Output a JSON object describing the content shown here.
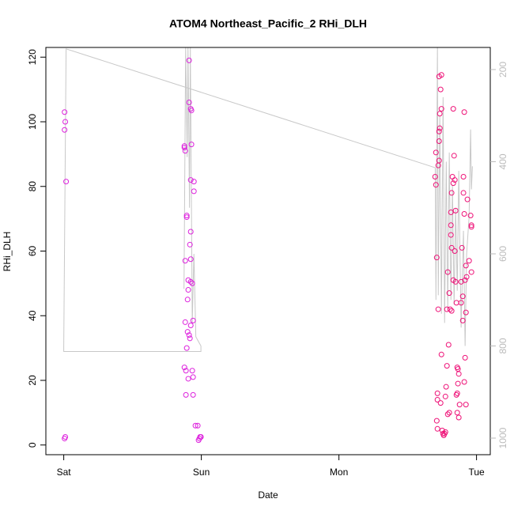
{
  "chart_data": {
    "type": "scatter",
    "title": "ATOM4 Northeast_Pacific_2 RHi_DLH",
    "xlabel": "Date",
    "ylabel": "RHi_DLH",
    "xlim": [
      -0.13,
      3.1
    ],
    "xticks": [
      {
        "value": 0,
        "label": "Sat"
      },
      {
        "value": 1,
        "label": "Sun"
      },
      {
        "value": 2,
        "label": "Mon"
      },
      {
        "value": 3,
        "label": "Tue"
      }
    ],
    "ylim": [
      -3,
      123
    ],
    "yticks": [
      0,
      20,
      40,
      60,
      80,
      100,
      120
    ],
    "y2lim": [
      1036,
      152
    ],
    "y2ticks": [
      200,
      400,
      600,
      800,
      1000
    ],
    "y2color": "#bbbbbb",
    "series": [
      {
        "type": "scatter",
        "color": "#dd22dd",
        "x": [
          0.006,
          0.011,
          0.006,
          0.017,
          0.006,
          0.011,
          0.877,
          0.883,
          0.877,
          0.911,
          0.911,
          0.923,
          0.928,
          0.928,
          0.923,
          0.946,
          0.946,
          0.894,
          0.894,
          0.923,
          0.917,
          0.883,
          0.923,
          0.905,
          0.923,
          0.934,
          0.905,
          0.9,
          0.94,
          0.883,
          0.923,
          0.9,
          0.911,
          0.917,
          0.894,
          0.877,
          0.888,
          0.934,
          0.905,
          0.94,
          0.888,
          0.94,
          0.957,
          0.974,
          0.98,
          0.986,
          0.991,
          0.997
        ],
        "values": [
          97.5,
          100,
          103,
          81.5,
          2,
          2.5,
          92,
          91,
          92.5,
          119,
          106,
          104,
          103.5,
          93,
          82,
          81.5,
          78.5,
          71,
          70.5,
          66,
          62,
          57,
          57.5,
          51,
          50.5,
          50,
          48,
          45,
          38.5,
          38,
          37,
          35,
          34,
          33,
          30,
          24,
          23,
          23,
          20.5,
          21,
          15.5,
          15.5,
          6,
          6,
          1.5,
          2,
          2.5,
          2.5
        ]
      },
      {
        "type": "scatter",
        "color": "#ee1177",
        "x": [
          2.705,
          2.699,
          2.705,
          2.722,
          2.728,
          2.728,
          2.728,
          2.733,
          2.733,
          2.728,
          2.745,
          2.739,
          2.745,
          2.711,
          2.722,
          2.716,
          2.716,
          2.711,
          2.716,
          2.745,
          2.739,
          2.751,
          2.756,
          2.762,
          2.768,
          2.774,
          2.779,
          2.785,
          2.774,
          2.791,
          2.802,
          2.797,
          2.785,
          2.791,
          2.802,
          2.808,
          2.814,
          2.814,
          2.814,
          2.819,
          2.819,
          2.825,
          2.831,
          2.831,
          2.819,
          2.831,
          2.837,
          2.842,
          2.842,
          2.848,
          2.848,
          2.854,
          2.86,
          2.854,
          2.865,
          2.86,
          2.865,
          2.871,
          2.877,
          2.871,
          2.86,
          2.888,
          2.888,
          2.894,
          2.9,
          2.9,
          2.905,
          2.905,
          2.911,
          2.911,
          2.917,
          2.917,
          2.911,
          2.923,
          2.923,
          2.923,
          2.928,
          2.934,
          2.946,
          2.957,
          2.963,
          2.963,
          2.963
        ],
        "values": [
          80.5,
          83,
          90.5,
          86.5,
          88,
          94,
          97,
          98,
          102.5,
          114,
          114.5,
          110,
          104,
          58,
          42,
          16,
          14,
          7.5,
          5,
          28,
          13,
          4.5,
          3.5,
          3,
          3.5,
          4,
          18,
          24.5,
          15,
          9.5,
          10,
          31,
          42,
          53.5,
          47,
          42,
          72,
          65,
          68,
          61,
          78,
          83,
          81,
          51,
          41.5,
          104,
          89.5,
          82,
          60,
          72.5,
          50.5,
          44,
          16,
          15.5,
          19,
          24,
          23.5,
          22,
          12.5,
          8.5,
          10,
          44,
          50.5,
          61,
          38.5,
          46,
          83,
          78,
          103,
          71.5,
          51,
          27,
          19.5,
          12.5,
          41,
          55.5,
          52,
          76,
          57,
          71,
          68,
          67.5,
          53.5
        ]
      },
      {
        "type": "line",
        "axis": "y2",
        "color": "#c8c8c8",
        "x": [
          0.874,
          0.886,
          0.897,
          0.903,
          0.914,
          0.92,
          0.934,
          0.946,
          0.96,
          0.997,
          0.997,
          0.0,
          0.0,
          0.017,
          2.7,
          2.705,
          2.716,
          2.722,
          2.733,
          2.745,
          2.757,
          2.768,
          2.78,
          2.791,
          2.802,
          2.814,
          2.825,
          2.837,
          2.848,
          2.86,
          2.871,
          2.888,
          2.905,
          2.917,
          2.928,
          2.946,
          2.957,
          2.963,
          2.97
        ],
        "values": [
          676,
          150,
          390,
          150,
          500,
          150,
          750,
          600,
          780,
          800,
          812,
          812,
          800,
          155,
          413,
          700,
          150,
          690,
          300,
          730,
          260,
          750,
          400,
          720,
          380,
          700,
          450,
          710,
          500,
          680,
          420,
          760,
          550,
          800,
          600,
          520,
          330,
          460,
          410
        ]
      }
    ]
  }
}
